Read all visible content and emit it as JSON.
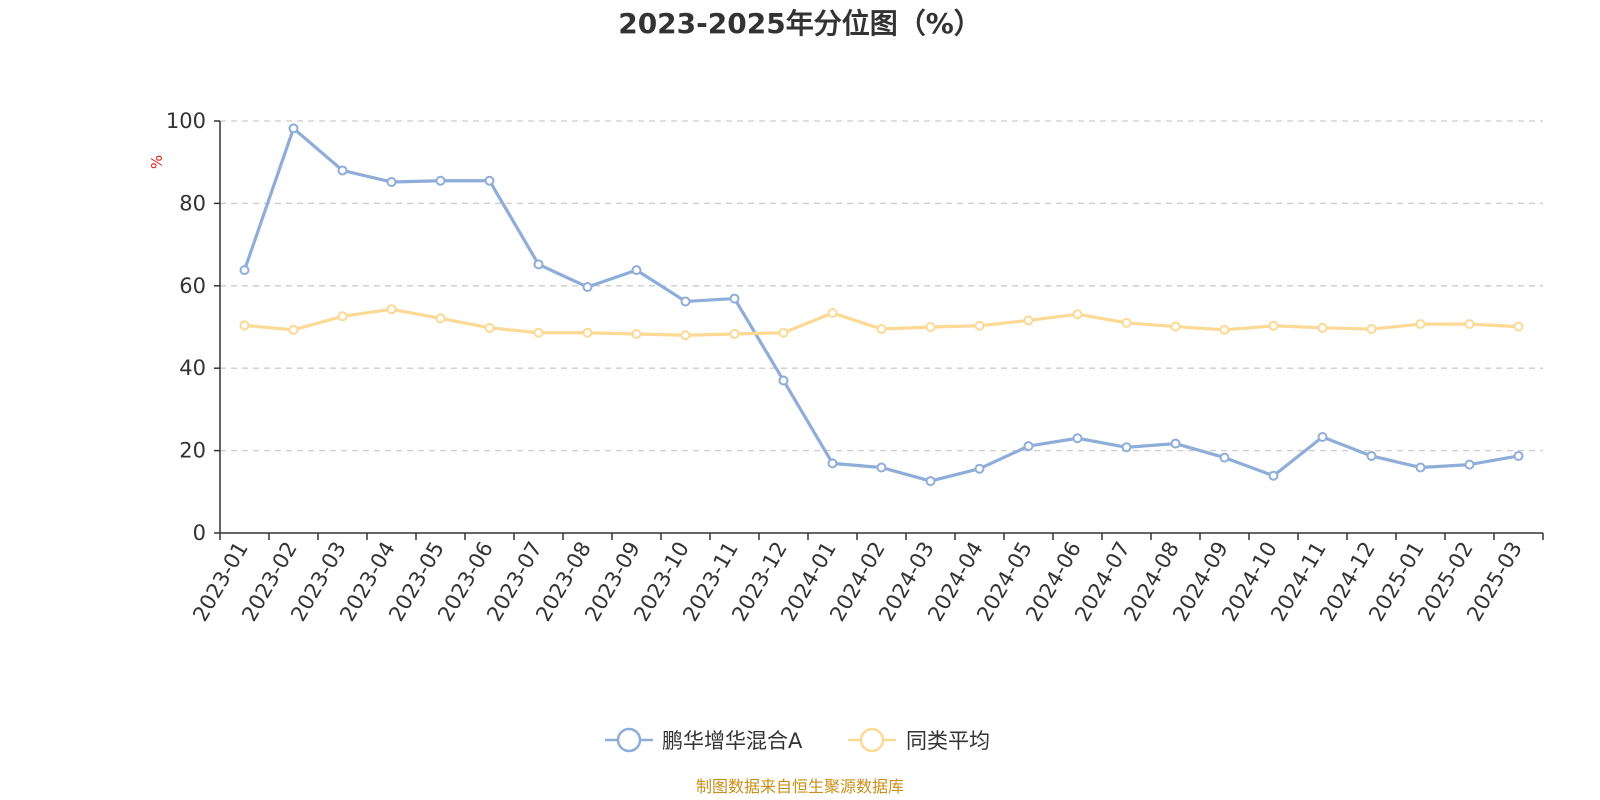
{
  "chart_data": {
    "type": "line",
    "title": "2023-2025年分位图（%）",
    "ylabel": "%",
    "xlabel": "",
    "ylim": [
      0,
      100
    ],
    "yticks": [
      0,
      20,
      40,
      60,
      80,
      100
    ],
    "grid": true,
    "legend_position": "bottom-center",
    "categories": [
      "2023-01",
      "2023-02",
      "2023-03",
      "2023-04",
      "2023-05",
      "2023-06",
      "2023-07",
      "2023-08",
      "2023-09",
      "2023-10",
      "2023-11",
      "2023-12",
      "2024-01",
      "2024-02",
      "2024-03",
      "2024-04",
      "2024-05",
      "2024-06",
      "2024-07",
      "2024-08",
      "2024-09",
      "2024-10",
      "2024-11",
      "2024-12",
      "2025-01",
      "2025-02",
      "2025-03"
    ],
    "series": [
      {
        "name": "鹏华增华混合A",
        "color": "#8eadd9",
        "values": [
          63.8,
          98.2,
          88.0,
          85.2,
          85.5,
          85.5,
          65.2,
          59.7,
          63.8,
          56.2,
          56.9,
          37.0,
          16.9,
          15.9,
          12.6,
          15.6,
          21.1,
          23.0,
          20.8,
          21.7,
          18.3,
          13.9,
          23.3,
          18.7,
          15.9,
          16.6,
          18.7
        ]
      },
      {
        "name": "同类平均",
        "color": "#fcd994",
        "values": [
          50.4,
          49.3,
          52.6,
          54.3,
          52.1,
          49.8,
          48.6,
          48.6,
          48.3,
          48.0,
          48.3,
          48.6,
          53.4,
          49.5,
          50.0,
          50.3,
          51.6,
          53.1,
          51.0,
          50.1,
          49.3,
          50.3,
          49.8,
          49.5,
          50.7,
          50.7,
          50.1
        ]
      }
    ]
  },
  "source_text": "制图数据来自恒生聚源数据库"
}
